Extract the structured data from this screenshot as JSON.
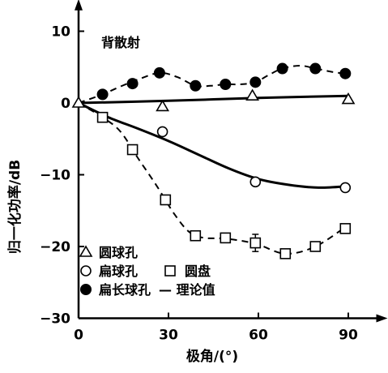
{
  "chart_data": {
    "type": "line",
    "title": "背散射",
    "xlabel": "极角/(°)",
    "ylabel": "归一化功率/dB",
    "xlim": [
      0,
      95
    ],
    "ylim": [
      -30,
      12
    ],
    "x_ticks": [
      0,
      30,
      60,
      90
    ],
    "x_tick_labels": [
      "0",
      "30",
      "60",
      "90"
    ],
    "y_ticks": [
      10,
      0,
      -10,
      -20,
      -30
    ],
    "y_tick_labels": [
      "10",
      "0",
      "−10",
      "−20",
      "−30"
    ],
    "grid": false,
    "legend_position": "bottom-left",
    "series": [
      {
        "name": "圆球孔",
        "marker": "triangle-open",
        "points": [
          [
            0,
            0
          ],
          [
            28,
            -0.5
          ],
          [
            58,
            1
          ],
          [
            90,
            0.5
          ]
        ],
        "curve": [
          [
            0,
            0
          ],
          [
            30,
            0.3
          ],
          [
            60,
            0.7
          ],
          [
            90,
            1
          ]
        ],
        "curve_style": "solid"
      },
      {
        "name": "扁球孔",
        "marker": "circle-open",
        "points": [
          [
            28,
            -4
          ],
          [
            59,
            -11
          ],
          [
            89,
            -11.8
          ]
        ],
        "curve": [
          [
            0,
            0
          ],
          [
            10,
            -2
          ],
          [
            20,
            -3.6
          ],
          [
            30,
            -5.3
          ],
          [
            40,
            -7.2
          ],
          [
            50,
            -9.1
          ],
          [
            60,
            -10.6
          ],
          [
            70,
            -11.4
          ],
          [
            80,
            -11.8
          ],
          [
            90,
            -11.6
          ]
        ],
        "curve_style": "solid"
      },
      {
        "name": "圆盘",
        "marker": "square-open",
        "points": [
          [
            8,
            -2
          ],
          [
            18,
            -6.5
          ],
          [
            29,
            -13.5
          ],
          [
            39,
            -18.5
          ],
          [
            49,
            -18.8
          ],
          [
            59,
            -19.5
          ],
          [
            69,
            -21
          ],
          [
            79,
            -20
          ],
          [
            89,
            -17.5
          ]
        ],
        "error_bar_at": [
          59,
          -19.5,
          1.2
        ],
        "curve": [
          [
            0,
            0
          ],
          [
            8,
            -2
          ],
          [
            14,
            -4
          ],
          [
            20,
            -7.8
          ],
          [
            26,
            -11.5
          ],
          [
            32,
            -15.5
          ],
          [
            37,
            -18
          ],
          [
            42,
            -18.8
          ],
          [
            49,
            -18.9
          ],
          [
            59,
            -19.6
          ],
          [
            69,
            -21
          ],
          [
            79,
            -20
          ],
          [
            89,
            -17.3
          ]
        ],
        "curve_style": "dashed"
      },
      {
        "name": "扁长球孔",
        "marker": "circle-filled",
        "points": [
          [
            8,
            1.2
          ],
          [
            18,
            2.7
          ],
          [
            27,
            4.2
          ],
          [
            39,
            2.4
          ],
          [
            49,
            2.6
          ],
          [
            59,
            2.9
          ],
          [
            68,
            4.8
          ],
          [
            79,
            4.8
          ],
          [
            89,
            4.1
          ]
        ],
        "curve": [
          [
            0,
            0
          ],
          [
            8,
            1.2
          ],
          [
            14,
            2.3
          ],
          [
            20,
            3.3
          ],
          [
            27,
            4.2
          ],
          [
            33,
            3.6
          ],
          [
            39,
            2.4
          ],
          [
            44,
            2.4
          ],
          [
            49,
            2.6
          ],
          [
            54,
            2.6
          ],
          [
            59,
            2.9
          ],
          [
            63,
            3.8
          ],
          [
            68,
            4.8
          ],
          [
            74,
            5.2
          ],
          [
            79,
            4.8
          ],
          [
            85,
            4.3
          ],
          [
            89,
            4.1
          ]
        ],
        "curve_style": "dashed"
      }
    ],
    "legend": {
      "row1": "圆球孔",
      "row2a": "扁球孔",
      "row2b": "圆盘",
      "row3a": "扁长球孔",
      "row3b": "— 理论值"
    }
  }
}
